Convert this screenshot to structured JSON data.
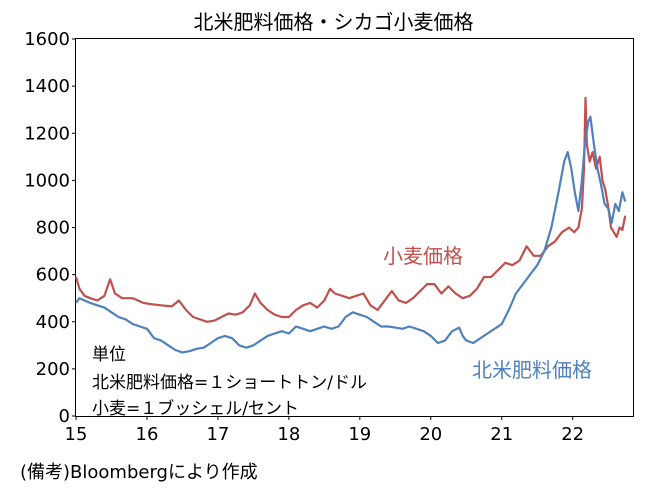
{
  "chart_data": {
    "type": "line",
    "title": "北米肥料価格・シカゴ小麦価格",
    "source": "(備考)Bloombergにより作成",
    "units_note": [
      "単位",
      "北米肥料価格=１ショートトン/ドル",
      "小麦=１ブッシェル/セント"
    ],
    "ylim": [
      0,
      1600
    ],
    "yticks": [
      0,
      200,
      400,
      600,
      800,
      1000,
      1200,
      1400,
      1600
    ],
    "xlim": [
      2015.0,
      2022.85
    ],
    "xtick_labels": [
      "15",
      "16",
      "17",
      "18",
      "19",
      "20",
      "21",
      "22"
    ],
    "xtick_values": [
      2015,
      2016,
      2017,
      2018,
      2019,
      2020,
      2021,
      2022
    ],
    "grid": false,
    "series": [
      {
        "name": "小麦価格",
        "color": "#c0504d",
        "points": [
          [
            2015.0,
            590
          ],
          [
            2015.05,
            540
          ],
          [
            2015.12,
            510
          ],
          [
            2015.2,
            500
          ],
          [
            2015.3,
            490
          ],
          [
            2015.4,
            510
          ],
          [
            2015.48,
            580
          ],
          [
            2015.55,
            520
          ],
          [
            2015.65,
            500
          ],
          [
            2015.8,
            500
          ],
          [
            2015.95,
            480
          ],
          [
            2016.05,
            475
          ],
          [
            2016.2,
            470
          ],
          [
            2016.35,
            465
          ],
          [
            2016.45,
            490
          ],
          [
            2016.55,
            450
          ],
          [
            2016.65,
            420
          ],
          [
            2016.75,
            410
          ],
          [
            2016.85,
            400
          ],
          [
            2016.95,
            405
          ],
          [
            2017.05,
            420
          ],
          [
            2017.15,
            435
          ],
          [
            2017.25,
            430
          ],
          [
            2017.35,
            440
          ],
          [
            2017.45,
            470
          ],
          [
            2017.52,
            520
          ],
          [
            2017.6,
            480
          ],
          [
            2017.7,
            450
          ],
          [
            2017.8,
            430
          ],
          [
            2017.9,
            420
          ],
          [
            2018.0,
            420
          ],
          [
            2018.1,
            450
          ],
          [
            2018.2,
            470
          ],
          [
            2018.3,
            480
          ],
          [
            2018.4,
            460
          ],
          [
            2018.5,
            490
          ],
          [
            2018.58,
            540
          ],
          [
            2018.65,
            520
          ],
          [
            2018.75,
            510
          ],
          [
            2018.85,
            500
          ],
          [
            2018.95,
            510
          ],
          [
            2019.05,
            520
          ],
          [
            2019.15,
            470
          ],
          [
            2019.25,
            450
          ],
          [
            2019.35,
            490
          ],
          [
            2019.45,
            530
          ],
          [
            2019.55,
            490
          ],
          [
            2019.65,
            480
          ],
          [
            2019.75,
            500
          ],
          [
            2019.85,
            530
          ],
          [
            2019.95,
            560
          ],
          [
            2020.05,
            560
          ],
          [
            2020.15,
            520
          ],
          [
            2020.25,
            550
          ],
          [
            2020.35,
            520
          ],
          [
            2020.45,
            500
          ],
          [
            2020.55,
            510
          ],
          [
            2020.65,
            540
          ],
          [
            2020.75,
            590
          ],
          [
            2020.85,
            590
          ],
          [
            2020.95,
            620
          ],
          [
            2021.05,
            650
          ],
          [
            2021.15,
            640
          ],
          [
            2021.25,
            660
          ],
          [
            2021.35,
            720
          ],
          [
            2021.45,
            680
          ],
          [
            2021.55,
            680
          ],
          [
            2021.65,
            720
          ],
          [
            2021.75,
            740
          ],
          [
            2021.85,
            780
          ],
          [
            2021.95,
            800
          ],
          [
            2022.02,
            780
          ],
          [
            2022.08,
            800
          ],
          [
            2022.13,
            880
          ],
          [
            2022.16,
            1050
          ],
          [
            2022.18,
            1350
          ],
          [
            2022.2,
            1150
          ],
          [
            2022.24,
            1080
          ],
          [
            2022.28,
            1120
          ],
          [
            2022.33,
            1050
          ],
          [
            2022.38,
            1100
          ],
          [
            2022.42,
            1000
          ],
          [
            2022.46,
            960
          ],
          [
            2022.5,
            890
          ],
          [
            2022.54,
            800
          ],
          [
            2022.58,
            780
          ],
          [
            2022.62,
            760
          ],
          [
            2022.66,
            800
          ],
          [
            2022.7,
            790
          ],
          [
            2022.74,
            850
          ]
        ]
      },
      {
        "name": "北米肥料価格",
        "color": "#4f81bd",
        "points": [
          [
            2015.0,
            480
          ],
          [
            2015.05,
            500
          ],
          [
            2015.12,
            490
          ],
          [
            2015.2,
            480
          ],
          [
            2015.3,
            470
          ],
          [
            2015.4,
            460
          ],
          [
            2015.5,
            440
          ],
          [
            2015.6,
            420
          ],
          [
            2015.7,
            410
          ],
          [
            2015.8,
            390
          ],
          [
            2015.9,
            380
          ],
          [
            2016.0,
            370
          ],
          [
            2016.1,
            330
          ],
          [
            2016.2,
            320
          ],
          [
            2016.3,
            300
          ],
          [
            2016.4,
            280
          ],
          [
            2016.5,
            270
          ],
          [
            2016.6,
            275
          ],
          [
            2016.7,
            285
          ],
          [
            2016.8,
            290
          ],
          [
            2016.9,
            310
          ],
          [
            2017.0,
            330
          ],
          [
            2017.1,
            340
          ],
          [
            2017.2,
            330
          ],
          [
            2017.3,
            300
          ],
          [
            2017.4,
            290
          ],
          [
            2017.5,
            300
          ],
          [
            2017.6,
            320
          ],
          [
            2017.7,
            340
          ],
          [
            2017.8,
            350
          ],
          [
            2017.9,
            360
          ],
          [
            2018.0,
            350
          ],
          [
            2018.1,
            380
          ],
          [
            2018.2,
            370
          ],
          [
            2018.3,
            360
          ],
          [
            2018.4,
            370
          ],
          [
            2018.5,
            380
          ],
          [
            2018.6,
            370
          ],
          [
            2018.7,
            380
          ],
          [
            2018.8,
            420
          ],
          [
            2018.9,
            440
          ],
          [
            2019.0,
            430
          ],
          [
            2019.1,
            420
          ],
          [
            2019.2,
            400
          ],
          [
            2019.3,
            380
          ],
          [
            2019.4,
            380
          ],
          [
            2019.5,
            375
          ],
          [
            2019.6,
            370
          ],
          [
            2019.7,
            380
          ],
          [
            2019.8,
            370
          ],
          [
            2019.9,
            360
          ],
          [
            2020.0,
            340
          ],
          [
            2020.1,
            310
          ],
          [
            2020.2,
            320
          ],
          [
            2020.3,
            360
          ],
          [
            2020.4,
            375
          ],
          [
            2020.45,
            340
          ],
          [
            2020.5,
            320
          ],
          [
            2020.6,
            310
          ],
          [
            2020.7,
            330
          ],
          [
            2020.8,
            350
          ],
          [
            2020.9,
            370
          ],
          [
            2021.0,
            390
          ],
          [
            2021.1,
            450
          ],
          [
            2021.2,
            520
          ],
          [
            2021.3,
            560
          ],
          [
            2021.4,
            600
          ],
          [
            2021.5,
            640
          ],
          [
            2021.6,
            700
          ],
          [
            2021.7,
            800
          ],
          [
            2021.8,
            950
          ],
          [
            2021.88,
            1080
          ],
          [
            2021.93,
            1120
          ],
          [
            2021.98,
            1050
          ],
          [
            2022.03,
            950
          ],
          [
            2022.08,
            870
          ],
          [
            2022.13,
            1000
          ],
          [
            2022.17,
            1150
          ],
          [
            2022.22,
            1250
          ],
          [
            2022.25,
            1270
          ],
          [
            2022.3,
            1150
          ],
          [
            2022.35,
            1050
          ],
          [
            2022.4,
            980
          ],
          [
            2022.45,
            900
          ],
          [
            2022.5,
            880
          ],
          [
            2022.55,
            820
          ],
          [
            2022.6,
            900
          ],
          [
            2022.65,
            870
          ],
          [
            2022.7,
            950
          ],
          [
            2022.74,
            910
          ]
        ]
      }
    ]
  }
}
